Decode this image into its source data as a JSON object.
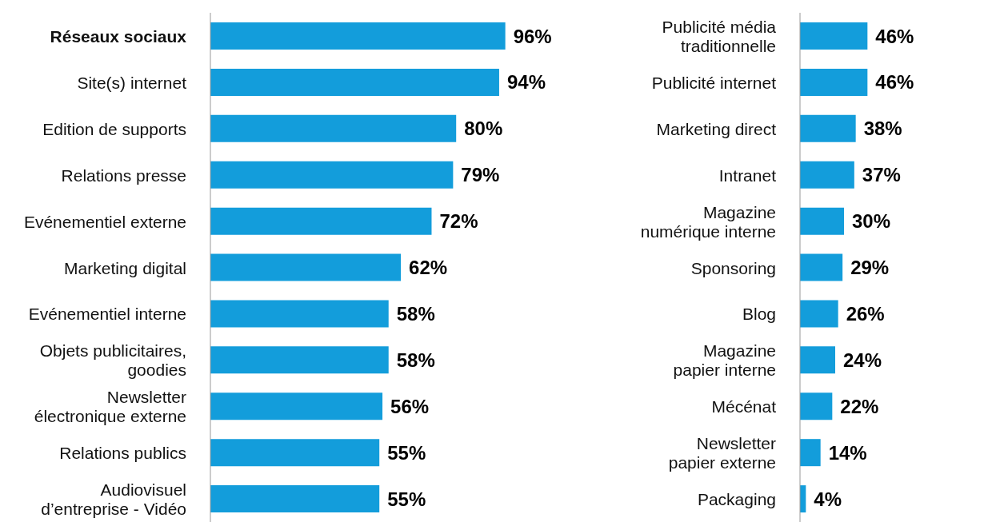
{
  "chart_data": [
    {
      "type": "bar",
      "orientation": "horizontal",
      "categories": [
        "Réseaux sociaux",
        "Site(s) internet",
        "Edition de supports",
        "Relations presse",
        "Evénementiel externe",
        "Marketing digital",
        "Evénementiel interne",
        "Objets publicitaires,\ngoodies",
        "Newsletter\nélectronique externe",
        "Relations publics",
        "Audiovisuel\nd’entreprise - Vidéo"
      ],
      "values": [
        96,
        94,
        80,
        79,
        72,
        62,
        58,
        58,
        56,
        55,
        55
      ],
      "value_labels": [
        "96%",
        "94%",
        "80%",
        "79%",
        "72%",
        "62%",
        "58%",
        "58%",
        "56%",
        "55%",
        "55%"
      ],
      "color": "#139ddb",
      "grid": false,
      "legend": false
    },
    {
      "type": "bar",
      "orientation": "horizontal",
      "categories": [
        "Publicité média\ntraditionnelle",
        "Publicité internet",
        "Marketing direct",
        "Intranet",
        "Magazine\nnumérique interne",
        "Sponsoring",
        "Blog",
        "Magazine\npapier interne",
        "Mécénat",
        "Newsletter\npapier externe",
        "Packaging"
      ],
      "values": [
        46,
        46,
        38,
        37,
        30,
        29,
        26,
        24,
        22,
        14,
        4
      ],
      "value_labels": [
        "46%",
        "46%",
        "38%",
        "37%",
        "30%",
        "29%",
        "26%",
        "24%",
        "22%",
        "14%",
        "4%"
      ],
      "color": "#139ddb",
      "grid": false,
      "legend": false
    }
  ]
}
